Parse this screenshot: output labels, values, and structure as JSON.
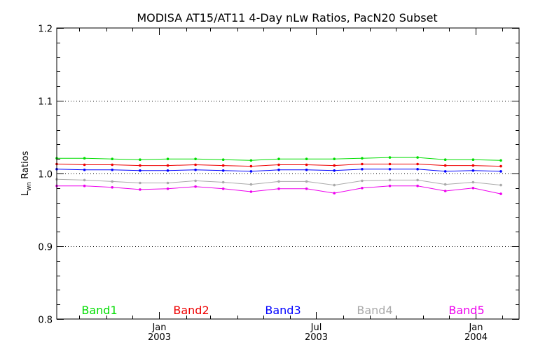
{
  "chart_data": {
    "type": "line",
    "title": "MODISA AT15/AT11 4-Day nLw Ratios, PacN20 Subset",
    "ylabel_main": "L",
    "ylabel_sub": "wn",
    "ylabel_rest": " Ratios",
    "xlim": [
      "2002-09-05",
      "2004-02-20"
    ],
    "ylim": [
      0.8,
      1.2
    ],
    "y_ticks": [
      0.8,
      0.9,
      1.0,
      1.1,
      1.2
    ],
    "y_tick_labels": [
      "0.8",
      "0.9",
      "1.0",
      "1.1",
      "1.2"
    ],
    "y_gridlines": [
      0.9,
      1.0,
      1.1
    ],
    "grid": "dotted horizontal",
    "x_major_ticks": [
      {
        "date": "2003-01-01",
        "line1": "Jan",
        "line2": "2003"
      },
      {
        "date": "2003-07-01",
        "line1": "Jul",
        "line2": "2003"
      },
      {
        "date": "2004-01-01",
        "line1": "Jan",
        "line2": "2004"
      }
    ],
    "x_minor_ticks": [
      "2002-10-01",
      "2002-11-01",
      "2002-12-01",
      "2003-02-01",
      "2003-03-01",
      "2003-04-01",
      "2003-05-01",
      "2003-06-01",
      "2003-08-01",
      "2003-09-01",
      "2003-10-01",
      "2003-11-01",
      "2003-12-01",
      "2004-02-01"
    ],
    "x": [
      "2002-09-05",
      "2002-10-07",
      "2002-11-08",
      "2002-12-10",
      "2003-01-11",
      "2003-02-12",
      "2003-03-16",
      "2003-04-17",
      "2003-05-19",
      "2003-06-20",
      "2003-07-22",
      "2003-08-23",
      "2003-09-24",
      "2003-10-26",
      "2003-11-27",
      "2003-12-29",
      "2004-01-30"
    ],
    "series": [
      {
        "name": "Band1",
        "color": "#00dd00",
        "values": [
          1.021,
          1.021,
          1.02,
          1.019,
          1.02,
          1.02,
          1.019,
          1.018,
          1.02,
          1.02,
          1.02,
          1.021,
          1.022,
          1.022,
          1.019,
          1.019,
          1.018
        ]
      },
      {
        "name": "Band2",
        "color": "#ee0000",
        "values": [
          1.013,
          1.012,
          1.012,
          1.011,
          1.011,
          1.012,
          1.011,
          1.01,
          1.012,
          1.012,
          1.011,
          1.013,
          1.013,
          1.013,
          1.011,
          1.011,
          1.01
        ]
      },
      {
        "name": "Band3",
        "color": "#0000ff",
        "values": [
          1.006,
          1.005,
          1.005,
          1.004,
          1.004,
          1.005,
          1.004,
          1.003,
          1.005,
          1.005,
          1.004,
          1.006,
          1.006,
          1.006,
          1.003,
          1.004,
          1.003
        ]
      },
      {
        "name": "Band4",
        "color": "#aaaaaa",
        "values": [
          0.992,
          0.991,
          0.989,
          0.987,
          0.987,
          0.99,
          0.988,
          0.985,
          0.989,
          0.989,
          0.984,
          0.99,
          0.991,
          0.991,
          0.985,
          0.988,
          0.984
        ]
      },
      {
        "name": "Band5",
        "color": "#ee00ee",
        "values": [
          0.983,
          0.983,
          0.981,
          0.978,
          0.979,
          0.982,
          0.979,
          0.975,
          0.979,
          0.979,
          0.973,
          0.98,
          0.983,
          0.983,
          0.976,
          0.98,
          0.972
        ]
      }
    ]
  }
}
